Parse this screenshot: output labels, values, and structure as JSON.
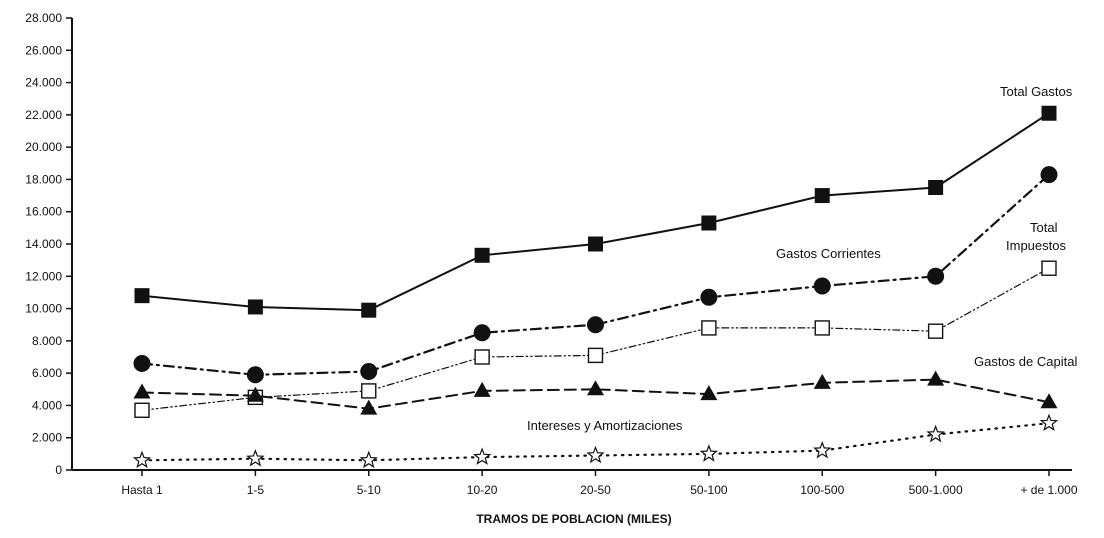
{
  "chart_data": {
    "type": "line",
    "xlabel": "TRAMOS DE POBLACION (MILES)",
    "ylabel": "",
    "ylim": [
      0,
      28000
    ],
    "yticks": [
      "0",
      "2.000",
      "4.000",
      "6.000",
      "8.000",
      "10.000",
      "12.000",
      "14.000",
      "16.000",
      "18.000",
      "20.000",
      "22.000",
      "24.000",
      "26.000",
      "28.000"
    ],
    "categories": [
      "Hasta 1",
      "1-5",
      "5-10",
      "10-20",
      "20-50",
      "50-100",
      "100-500",
      "500-1.000",
      "+ de 1.000"
    ],
    "grid": false,
    "legend": "inline labels",
    "series": [
      {
        "name": "Total Gastos",
        "marker": "filled-square",
        "line": "solid",
        "values": [
          10800,
          10100,
          9900,
          13300,
          14000,
          15300,
          17000,
          17500,
          22100
        ]
      },
      {
        "name": "Gastos Corrientes",
        "marker": "filled-circle",
        "line": "dash-dot",
        "values": [
          6600,
          5900,
          6100,
          8500,
          9000,
          10700,
          11400,
          12000,
          18300
        ]
      },
      {
        "name": "Total Impuestos",
        "marker": "open-square",
        "line": "dash-dot-dot",
        "values": [
          3700,
          4500,
          4900,
          7000,
          7100,
          8800,
          8800,
          8600,
          12500
        ]
      },
      {
        "name": "Gastos de Capital",
        "marker": "filled-triangle",
        "line": "dashed",
        "values": [
          4800,
          4600,
          3800,
          4900,
          5000,
          4700,
          5400,
          5600,
          4200
        ]
      },
      {
        "name": "Intereses y Amortizaciones",
        "marker": "open-star",
        "line": "dotted",
        "values": [
          600,
          700,
          600,
          800,
          900,
          1000,
          1200,
          2200,
          2900
        ]
      }
    ],
    "labels": {
      "total_gastos": "Total Gastos",
      "gastos_corrientes": "Gastos Corrientes",
      "total_impuestos_1": "Total",
      "total_impuestos_2": "Impuestos",
      "gastos_capital": "Gastos de Capital",
      "intereses": "Intereses y Amortizaciones"
    }
  }
}
